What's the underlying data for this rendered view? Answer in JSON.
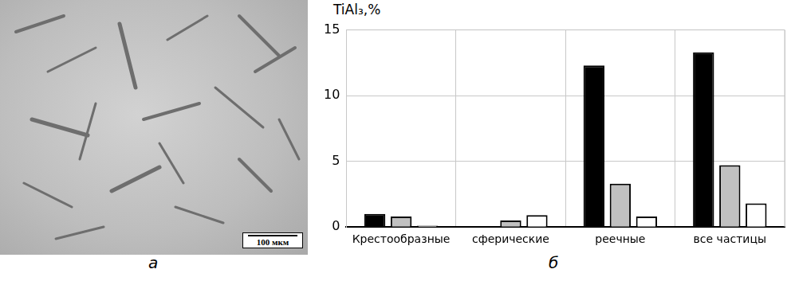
{
  "image_panel": {
    "label": "а",
    "scale_bar": "100 мкм"
  },
  "chart_panel_label": "б",
  "chart_data": {
    "type": "bar",
    "y_label": "TiAl₃,%",
    "categories": [
      "Крестообразные",
      "сферические",
      "реечные",
      "все частицы"
    ],
    "series": [
      {
        "color": "#000000",
        "values": [
          1.0,
          0.05,
          12.3,
          13.3
        ]
      },
      {
        "color": "#c0c0c0",
        "values": [
          0.8,
          0.5,
          3.3,
          4.7
        ]
      },
      {
        "color": "#ffffff",
        "values": [
          0.1,
          0.9,
          0.8,
          1.8
        ]
      }
    ],
    "ylim": [
      0,
      15
    ],
    "yticks": [
      0,
      5,
      10,
      15
    ],
    "grid": true
  }
}
